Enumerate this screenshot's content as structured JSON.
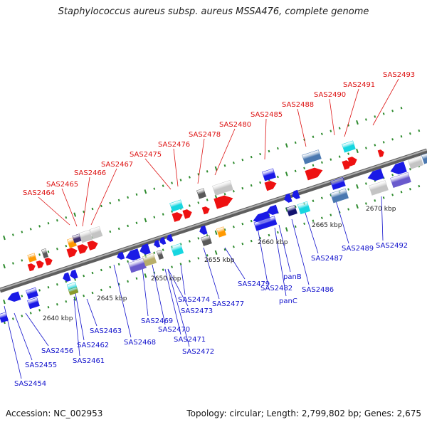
{
  "title": "Staphylococcus aureus subsp. aureus MSSA476, complete genome",
  "footer": {
    "accession": "Accession: NC_002953",
    "summary": "Topology: circular; Length: 2,799,802 bp; Genes: 2,675"
  },
  "colors": {
    "backbone": "#7a7a7a",
    "tick": "#2e8b2e",
    "top_label": "#dd1111",
    "bottom_label": "#1111cc",
    "red": "#ee1111",
    "blue": "#1a1ae6",
    "navy": "#12126e",
    "cyan": "#16d6e0",
    "orange": "#ff9900",
    "gray": "#c4c4c4",
    "darkgray": "#595959",
    "steel": "#4a78b0",
    "lavender": "#6a5acd",
    "khaki": "#b8ae6a",
    "purple": "#403070",
    "olive": "#8a9a2a"
  },
  "scale_labels": [
    "2640 kbp",
    "2645 kbp",
    "2650 kbp",
    "2655 kbp",
    "2660 kbp",
    "2665 kbp",
    "2670 kbp"
  ],
  "top_labels": [
    "SAS2464",
    "SAS2465",
    "SAS2466",
    "SAS2467",
    "SAS2475",
    "SAS2476",
    "SAS2478",
    "SAS2480",
    "SAS2485",
    "SAS2488",
    "SAS2490",
    "SAS2491",
    "SAS2493"
  ],
  "bottom_labels": [
    "SAS2454",
    "SAS2455",
    "SAS2456",
    "SAS2461",
    "SAS2462",
    "SAS2463",
    "SAS2468",
    "SAS2469",
    "SAS2470",
    "SAS2471",
    "SAS2472",
    "SAS2473",
    "SAS2474",
    "SAS2477",
    "SAS2479",
    "SAS2482",
    "panB",
    "panC",
    "SAS2486",
    "SAS2487",
    "SAS2489",
    "SAS2492"
  ]
}
